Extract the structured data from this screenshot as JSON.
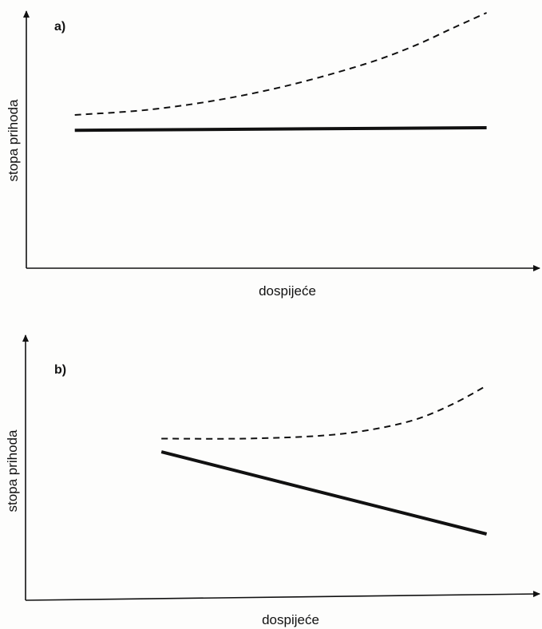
{
  "chart_data": [
    {
      "type": "line",
      "panel_label": "a)",
      "xlabel": "dospijeće",
      "ylabel": "stopa prihoda",
      "xlim": [
        0,
        100
      ],
      "ylim": [
        0,
        100
      ],
      "grid": false,
      "series": [
        {
          "style": "dashed",
          "color": "#111111",
          "x": [
            10,
            25,
            40,
            55,
            70,
            80,
            88,
            95
          ],
          "y": [
            60,
            62,
            66,
            72,
            80,
            87,
            94,
            100
          ]
        },
        {
          "style": "solid",
          "color": "#111111",
          "x": [
            10,
            95
          ],
          "y": [
            54,
            55
          ]
        }
      ]
    },
    {
      "type": "line",
      "panel_label": "b)",
      "xlabel": "dospijeće",
      "ylabel": "stopa prihoda",
      "xlim": [
        0,
        100
      ],
      "ylim": [
        0,
        100
      ],
      "grid": false,
      "series": [
        {
          "style": "dashed",
          "color": "#111111",
          "x": [
            28,
            45,
            60,
            70,
            80,
            88,
            95
          ],
          "y": [
            61,
            61,
            62,
            64,
            68,
            74,
            81
          ]
        },
        {
          "style": "solid",
          "color": "#111111",
          "x": [
            28,
            95
          ],
          "y": [
            56,
            25
          ]
        }
      ]
    }
  ]
}
